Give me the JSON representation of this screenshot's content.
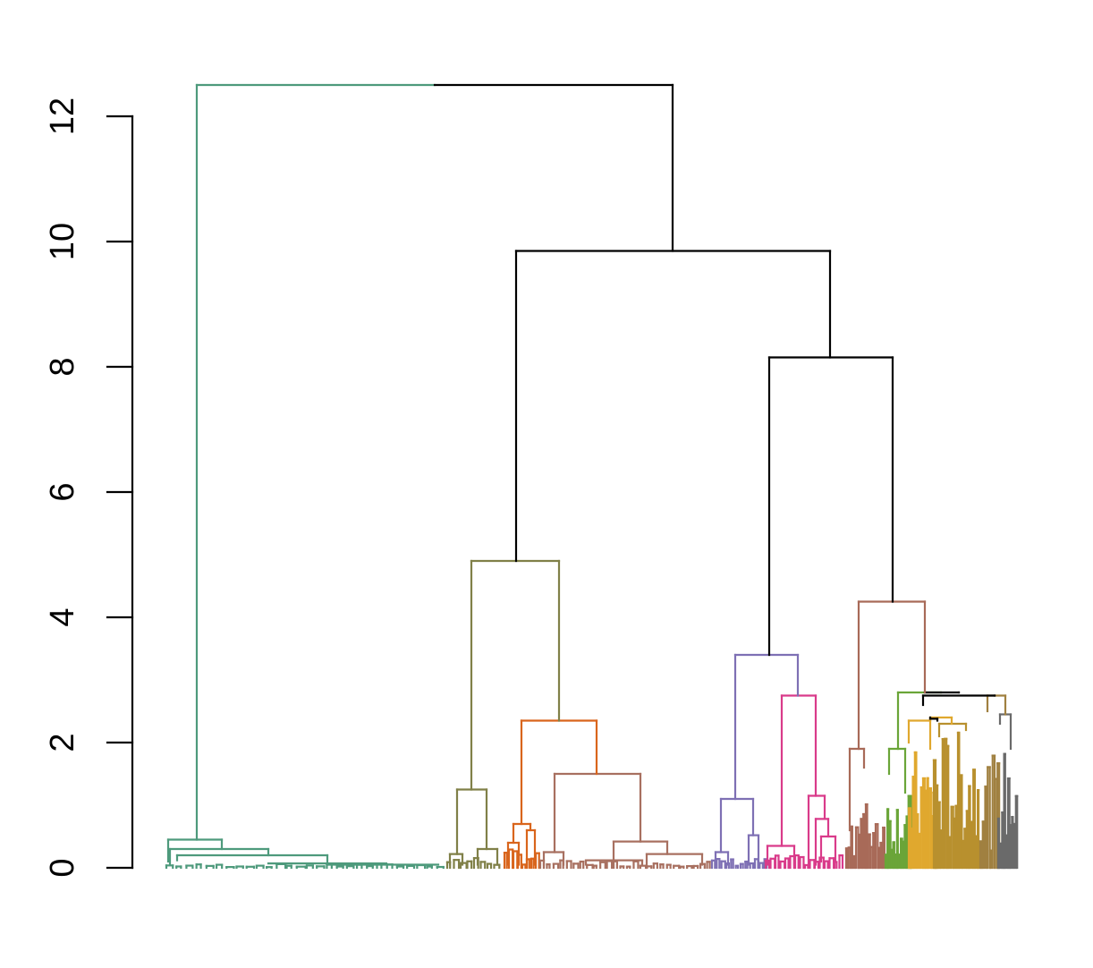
{
  "chart_data": {
    "type": "dendrogram",
    "title": "",
    "xlabel": "",
    "ylabel": "",
    "ylim": [
      0,
      12.5
    ],
    "yticks": [
      0,
      2,
      4,
      6,
      8,
      10,
      12
    ],
    "ytick_labels": [
      "0",
      "2",
      "4",
      "6",
      "8",
      "10",
      "12"
    ],
    "grid": false,
    "legend": "none",
    "colors": {
      "axis": "#000000",
      "root": "#000000",
      "teal": "#4e9a7c",
      "olive": "#808048",
      "orange": "#d9651c",
      "brown": "#a87060",
      "purple": "#7e70b4",
      "magenta": "#d93b8a",
      "rust": "#a86a58",
      "green": "#6aa538",
      "gold": "#e0a82e",
      "tan": "#b8902e",
      "khaki": "#a08040",
      "grey": "#6a6a6a"
    },
    "merges": [
      {
        "name": "root",
        "height": 12.5,
        "color": "root"
      },
      {
        "name": "teal-group",
        "height": 0.45,
        "color": "teal"
      },
      {
        "name": "right-main",
        "height": 9.85,
        "color": "root"
      },
      {
        "name": "mid-group",
        "height": 4.9,
        "color": "olive"
      },
      {
        "name": "orange-brown",
        "height": 2.35,
        "color": "orange"
      },
      {
        "name": "right-sub",
        "height": 8.15,
        "color": "root"
      },
      {
        "name": "purple-magenta",
        "height": 3.4,
        "color": "purple"
      },
      {
        "name": "magenta-group",
        "height": 2.75,
        "color": "magenta"
      },
      {
        "name": "right-dense",
        "height": 4.25,
        "color": "rust"
      },
      {
        "name": "dense-core",
        "height": 2.8,
        "color": "green"
      },
      {
        "name": "gold-khaki-grey",
        "height": 2.75,
        "color": "root"
      }
    ]
  }
}
